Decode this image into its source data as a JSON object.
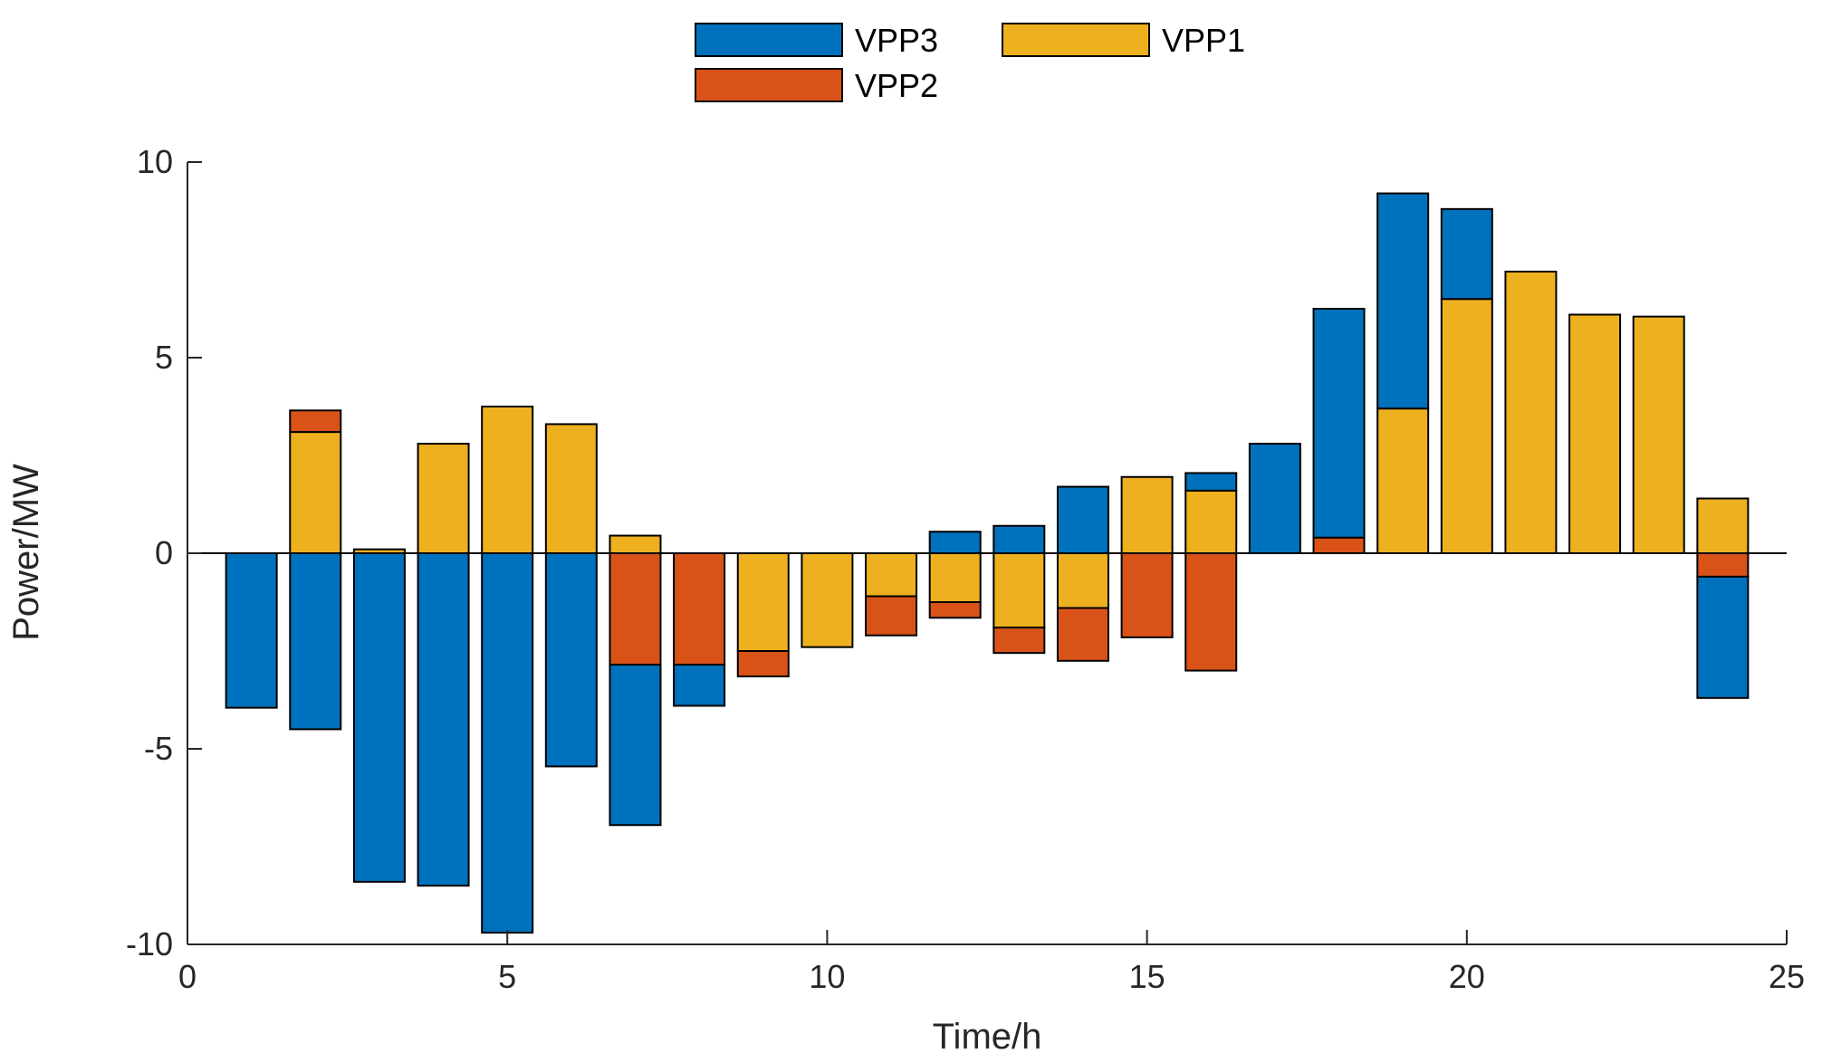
{
  "chart_data": {
    "type": "bar",
    "stacked": true,
    "title": "",
    "xlabel": "Time/h",
    "ylabel": "Power/MW",
    "xlim": [
      0,
      25
    ],
    "ylim": [
      -10,
      10
    ],
    "xticks": [
      0,
      5,
      10,
      15,
      20,
      25
    ],
    "yticks": [
      -10,
      -5,
      0,
      5,
      10
    ],
    "x": [
      1,
      2,
      3,
      4,
      5,
      6,
      7,
      8,
      9,
      10,
      11,
      12,
      13,
      14,
      15,
      16,
      17,
      18,
      19,
      20,
      21,
      22,
      23,
      24
    ],
    "series": [
      {
        "name": "VPP1",
        "color": "#EDB120",
        "values": [
          0,
          3.1,
          0.1,
          2.8,
          3.75,
          3.3,
          0.45,
          0,
          -2.5,
          -2.4,
          -1.1,
          -1.25,
          -1.9,
          -1.4,
          1.95,
          1.6,
          0,
          0,
          3.7,
          6.5,
          7.2,
          6.1,
          6.05,
          1.4
        ]
      },
      {
        "name": "VPP2",
        "color": "#D95319",
        "values": [
          0,
          0.55,
          0,
          0,
          0,
          0,
          -2.85,
          -2.85,
          -0.65,
          0,
          -1.0,
          -0.4,
          -0.65,
          -1.35,
          -2.15,
          -3.0,
          0,
          0.4,
          0,
          0,
          0,
          0,
          0,
          -0.6
        ]
      },
      {
        "name": "VPP3",
        "color": "#0072BD",
        "values": [
          -3.95,
          -4.5,
          -8.4,
          -8.5,
          -9.7,
          -5.45,
          -4.1,
          -1.05,
          0,
          0,
          0,
          0.55,
          0.7,
          1.7,
          0,
          0.45,
          2.8,
          5.85,
          5.5,
          2.3,
          0,
          0,
          0,
          -3.1
        ]
      }
    ],
    "legend": {
      "placement": "top-center",
      "entries": [
        "VPP3",
        "VPP1",
        "VPP2"
      ]
    }
  }
}
